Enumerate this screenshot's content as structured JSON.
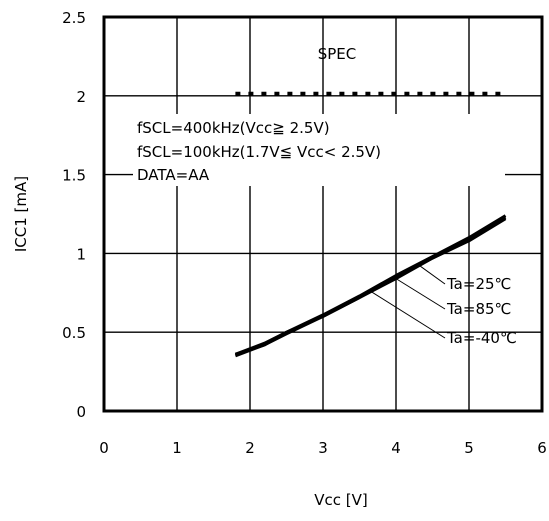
{
  "chart_data": {
    "type": "line",
    "xlabel": "Vcc [V]",
    "ylabel": "ICC1 [mA]",
    "xlim": [
      0,
      6
    ],
    "ylim": [
      0,
      2.5
    ],
    "x_ticks": [
      "0",
      "1",
      "2",
      "3",
      "4",
      "5",
      "6"
    ],
    "y_ticks": [
      "0",
      "0.5",
      "1",
      "1.5",
      "2",
      "2.5"
    ],
    "grid": true,
    "spec": {
      "label": "SPEC",
      "value": 2.0,
      "x_range": [
        1.8,
        5.5
      ]
    },
    "conditions": [
      "fSCL=400kHz(Vcc≧ 2.5V)",
      "fSCL=100kHz(1.7V≦ Vcc< 2.5V)",
      "DATA=AA"
    ],
    "series": [
      {
        "name": "Ta=25℃",
        "x": [
          1.8,
          2.2,
          2.5,
          3.0,
          3.5,
          4.0,
          4.5,
          5.0,
          5.5
        ],
        "y": [
          0.36,
          0.43,
          0.5,
          0.61,
          0.73,
          0.86,
          0.98,
          1.1,
          1.24
        ]
      },
      {
        "name": "Ta=85℃",
        "x": [
          1.8,
          2.2,
          2.5,
          3.0,
          3.5,
          4.0,
          4.5,
          5.0,
          5.5
        ],
        "y": [
          0.36,
          0.42,
          0.5,
          0.6,
          0.72,
          0.85,
          0.97,
          1.09,
          1.23
        ]
      },
      {
        "name": "Ta=-40℃",
        "x": [
          1.8,
          2.2,
          2.5,
          3.0,
          3.5,
          4.0,
          4.5,
          5.0,
          5.5
        ],
        "y": [
          0.35,
          0.42,
          0.49,
          0.6,
          0.72,
          0.84,
          0.97,
          1.08,
          1.22
        ]
      }
    ],
    "series_label_targets": [
      {
        "x": 4.3,
        "y": 0.93
      },
      {
        "x": 4.0,
        "y": 0.84
      },
      {
        "x": 3.65,
        "y": 0.76
      }
    ]
  }
}
